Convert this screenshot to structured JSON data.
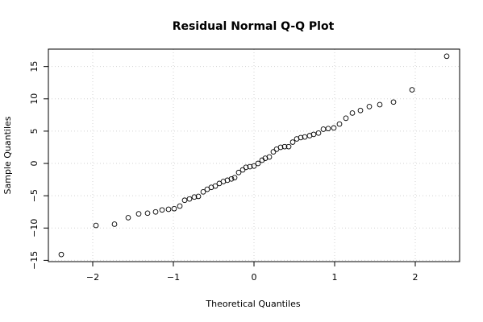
{
  "chart_data": {
    "type": "scatter",
    "title": "Residual Normal Q-Q Plot",
    "xlabel": "Theoretical Quantiles",
    "ylabel": "Sample Quantiles",
    "xlim": [
      -2.55,
      2.55
    ],
    "ylim": [
      -15.2,
      17.7
    ],
    "grid": true,
    "x_ticks": [
      -2,
      -1,
      0,
      1,
      2
    ],
    "x_tick_labels": [
      "−2",
      "−1",
      "0",
      "1",
      "2"
    ],
    "y_ticks": [
      -15,
      -10,
      -5,
      0,
      5,
      10,
      15
    ],
    "y_tick_labels": [
      "−15",
      "−10",
      "−5",
      "0",
      "5",
      "10",
      "15"
    ],
    "series": [
      {
        "x": [
          -2.39,
          -1.96,
          -1.73,
          -1.56,
          -1.43,
          -1.32,
          -1.22,
          -1.14,
          -1.06,
          -0.99,
          -0.92,
          -0.86,
          -0.8,
          -0.74,
          -0.69,
          -0.63,
          -0.58,
          -0.53,
          -0.48,
          -0.43,
          -0.38,
          -0.33,
          -0.28,
          -0.24,
          -0.19,
          -0.14,
          -0.1,
          -0.05,
          0.0,
          0.05,
          0.1,
          0.14,
          0.19,
          0.24,
          0.28,
          0.33,
          0.38,
          0.43,
          0.48,
          0.53,
          0.58,
          0.63,
          0.69,
          0.74,
          0.8,
          0.86,
          0.92,
          0.99,
          1.06,
          1.14,
          1.22,
          1.32,
          1.43,
          1.56,
          1.73,
          1.96,
          2.39
        ],
        "y": [
          -14.1,
          -9.6,
          -9.4,
          -8.4,
          -7.8,
          -7.7,
          -7.5,
          -7.2,
          -7.1,
          -7.0,
          -6.6,
          -5.7,
          -5.5,
          -5.2,
          -5.1,
          -4.4,
          -4.0,
          -3.7,
          -3.5,
          -3.1,
          -2.8,
          -2.6,
          -2.4,
          -2.2,
          -1.4,
          -1.0,
          -0.6,
          -0.5,
          -0.4,
          0.0,
          0.5,
          0.8,
          1.0,
          1.8,
          2.2,
          2.5,
          2.6,
          2.6,
          3.3,
          3.8,
          4.0,
          4.1,
          4.3,
          4.5,
          4.7,
          5.3,
          5.4,
          5.5,
          6.1,
          7.0,
          7.8,
          8.2,
          8.8,
          9.1,
          9.5,
          11.4,
          16.6
        ]
      }
    ]
  }
}
